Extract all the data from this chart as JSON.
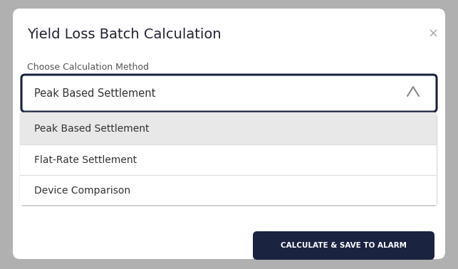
{
  "title": "Yield Loss Batch Calculation",
  "close_button": "×",
  "label": "Choose Calculation Method",
  "dropdown_selected": "Peak Based Settlement",
  "dropdown_options": [
    "Peak Based Settlement",
    "Flat-Rate Settlement",
    "Device Comparison"
  ],
  "button_text": "CALCULATE & SAVE TO ALARM",
  "bg_outer": "#b0b0b0",
  "bg_dialog": "#ffffff",
  "bg_dropdown_box": "#ffffff",
  "bg_dropdown_menu": "#f2f2f2",
  "bg_dropdown_option1": "#e8e8e8",
  "bg_dropdown_menu_white": "#ffffff",
  "border_dropdown": "#1a2340",
  "title_color": "#222233",
  "label_color": "#555555",
  "option_color": "#333333",
  "button_bg": "#1a2340",
  "button_text_color": "#ffffff",
  "close_color": "#aaaaaa",
  "arrow_color": "#888888",
  "divider_color": "#dddddd"
}
